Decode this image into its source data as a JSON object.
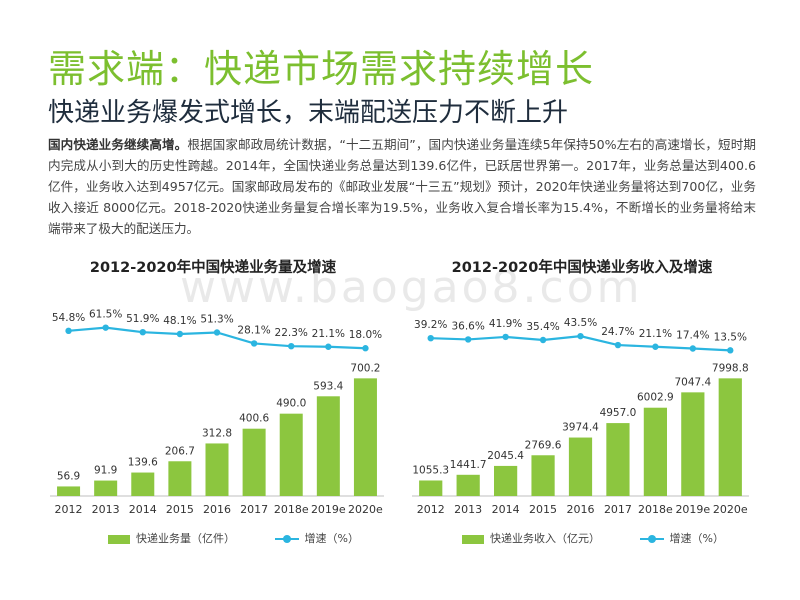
{
  "page": {
    "title": "需求端：快递市场需求持续增长",
    "subtitle": "快递业务爆发式增长，末端配送压力不断上升",
    "body_bold": "国内快递业务继续高增。",
    "body_text": "根据国家邮政局统计数据，“十二五期间”，国内快递业务量连续5年保持50%左右的高速增长，短时期内完成从小到大的历史性跨越。2014年，全国快递业务总量达到139.6亿件，已跃居世界第一。2017年，业务总量达到400.6亿件，业务收入达到4957亿元。国家邮政局发布的《邮政业发展“十三五”规划》预计，2020年快递业务量将达到700亿，业务收入接近 8000亿元。2018-2020快递业务量复合增长率为19.5%，业务收入复合增长率为15.4%，不断增长的业务量将给末端带来了极大的配送压力。",
    "watermark": "www.baogao8.com",
    "colors": {
      "title": "#7cbf2f",
      "bar": "#8cc63f",
      "line": "#2bb5e0"
    }
  },
  "chart_data": [
    {
      "type": "bar",
      "title": "2012-2020年中国快递业务量及增速",
      "categories": [
        "2012",
        "2013",
        "2014",
        "2015",
        "2016",
        "2017",
        "2018e",
        "2019e",
        "2020e"
      ],
      "series": [
        {
          "name": "快递业务量（亿件）",
          "type": "bar",
          "values": [
            56.9,
            91.9,
            139.6,
            206.7,
            312.8,
            400.6,
            490.0,
            593.4,
            700.2
          ],
          "labels": [
            "56.9",
            "91.9",
            "139.6",
            "206.7",
            "312.8",
            "400.6",
            "490.0",
            "593.4",
            "700.2"
          ]
        },
        {
          "name": "增速（%）",
          "type": "line",
          "values": [
            54.8,
            61.5,
            51.9,
            48.1,
            51.3,
            28.1,
            22.3,
            21.1,
            18.0
          ],
          "labels": [
            "54.8%",
            "61.5%",
            "51.9%",
            "48.1%",
            "51.3%",
            "28.1%",
            "22.3%",
            "21.1%",
            "18.0%"
          ]
        }
      ],
      "legend": {
        "bar": "快递业务量（亿件）",
        "line": "增速（%）"
      },
      "legend_position": "bottom"
    },
    {
      "type": "bar",
      "title": "2012-2020年中国快递业务收入及增速",
      "categories": [
        "2012",
        "2013",
        "2014",
        "2015",
        "2016",
        "2017",
        "2018e",
        "2019e",
        "2020e"
      ],
      "series": [
        {
          "name": "快递业务收入（亿元）",
          "type": "bar",
          "values": [
            1055.3,
            1441.7,
            2045.4,
            2769.6,
            3974.4,
            4957.0,
            6002.9,
            7047.4,
            7998.8
          ],
          "labels": [
            "1055.3",
            "1441.7",
            "2045.4",
            "2769.6",
            "3974.4",
            "4957.0",
            "6002.9",
            "7047.4",
            "7998.8"
          ]
        },
        {
          "name": "增速（%）",
          "type": "line",
          "values": [
            39.2,
            36.6,
            41.9,
            35.4,
            43.5,
            24.7,
            21.1,
            17.4,
            13.5
          ],
          "labels": [
            "39.2%",
            "36.6%",
            "41.9%",
            "35.4%",
            "43.5%",
            "24.7%",
            "21.1%",
            "17.4%",
            "13.5%"
          ]
        }
      ],
      "legend": {
        "bar": "快递业务收入（亿元）",
        "line": "增速（%）"
      },
      "legend_position": "bottom"
    }
  ]
}
